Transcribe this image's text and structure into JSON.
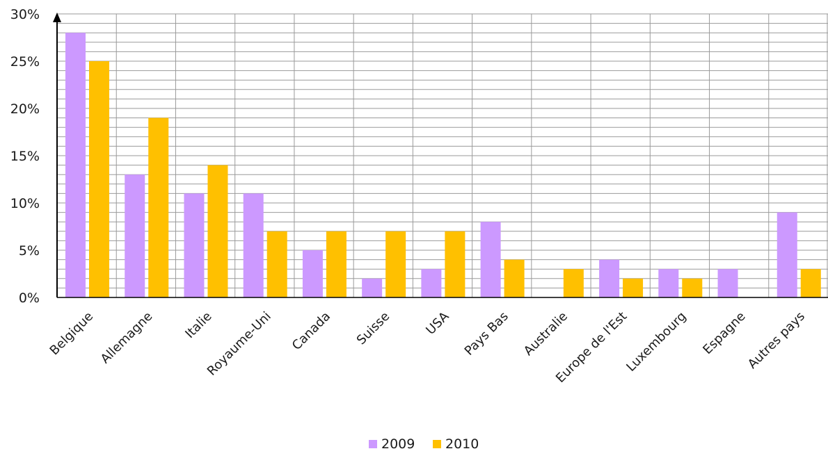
{
  "chart_data": {
    "type": "bar",
    "categories": [
      "Belgique",
      "Allemagne",
      "Italie",
      "Royaume-Uni",
      "Canada",
      "Suisse",
      "USA",
      "Pays Bas",
      "Australie",
      "Europe de l'Est",
      "Luxembourg",
      "Espagne",
      "Autres pays"
    ],
    "series": [
      {
        "name": "2009",
        "color": "#cc99ff",
        "values": [
          28,
          13,
          11,
          11,
          5,
          2,
          3,
          8,
          0,
          4,
          3,
          3,
          9
        ]
      },
      {
        "name": "2010",
        "color": "#ffc000",
        "values": [
          25,
          19,
          14,
          7,
          7,
          7,
          7,
          4,
          3,
          2,
          2,
          0,
          3
        ]
      }
    ],
    "title": "",
    "xlabel": "",
    "ylabel": "",
    "ylim": [
      0,
      30
    ],
    "y_ticks": [
      0,
      5,
      10,
      15,
      20,
      25,
      30
    ],
    "y_tick_labels": [
      "0%",
      "5%",
      "10%",
      "15%",
      "20%",
      "25%",
      "30%"
    ],
    "grid": true,
    "legend_position": "bottom-center"
  }
}
